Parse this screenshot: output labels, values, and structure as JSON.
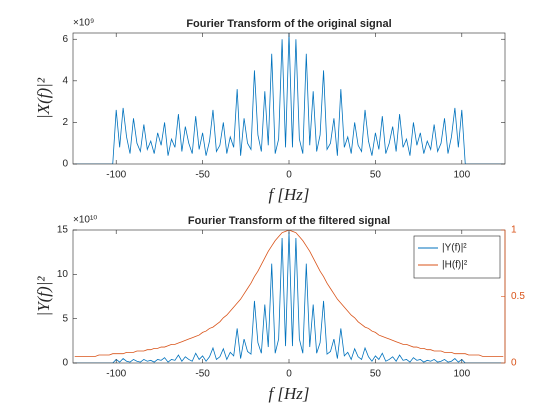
{
  "chart_data": [
    {
      "type": "line",
      "title": "Fourier Transform of the original signal",
      "xlabel": "f [Hz]",
      "ylabel": "|X(f)|²",
      "y_multiplier": "×10⁹",
      "x": [
        -124,
        -122,
        -120,
        -118,
        -116,
        -114,
        -112,
        -110,
        -108,
        -106,
        -104,
        -102,
        -100,
        -98,
        -96,
        -94,
        -92,
        -90,
        -88,
        -86,
        -84,
        -82,
        -80,
        -78,
        -76,
        -74,
        -72,
        -70,
        -68,
        -66,
        -64,
        -62,
        -60,
        -58,
        -56,
        -54,
        -52,
        -50,
        -48,
        -46,
        -44,
        -42,
        -40,
        -38,
        -36,
        -34,
        -32,
        -30,
        -28,
        -26,
        -24,
        -22,
        -20,
        -18,
        -16,
        -14,
        -12,
        -10,
        -8,
        -6,
        -4,
        -2,
        0,
        2,
        4,
        6,
        8,
        10,
        12,
        14,
        16,
        18,
        20,
        22,
        24,
        26,
        28,
        30,
        32,
        34,
        36,
        38,
        40,
        42,
        44,
        46,
        48,
        50,
        52,
        54,
        56,
        58,
        60,
        62,
        64,
        66,
        68,
        70,
        72,
        74,
        76,
        78,
        80,
        82,
        84,
        86,
        88,
        90,
        92,
        94,
        96,
        98,
        100,
        102,
        104,
        106,
        108,
        110,
        112,
        114,
        116,
        118,
        120,
        122,
        124
      ],
      "series": [
        {
          "color": "#0072BD",
          "values": [
            0,
            0,
            0,
            0,
            0,
            0,
            0,
            0,
            0,
            0,
            0,
            0,
            2.6,
            0.8,
            2.7,
            1.3,
            0.5,
            2.2,
            1.0,
            0.6,
            1.9,
            0.7,
            1.1,
            0.5,
            1.5,
            0.9,
            2.0,
            0.4,
            1.2,
            0.8,
            2.4,
            0.6,
            1.8,
            1.0,
            0.5,
            2.3,
            0.7,
            1.5,
            0.4,
            1.1,
            2.6,
            0.6,
            0.9,
            2.0,
            0.5,
            1.3,
            0.8,
            3.6,
            0.4,
            2.2,
            1.0,
            0.7,
            4.5,
            1.4,
            0.6,
            3.5,
            0.9,
            5.3,
            0.5,
            1.2,
            6.0,
            0.8,
            6.3,
            0.8,
            6.0,
            1.2,
            0.5,
            5.3,
            0.9,
            3.5,
            0.6,
            1.4,
            4.5,
            0.7,
            1.0,
            2.2,
            0.4,
            3.6,
            0.8,
            1.3,
            0.5,
            2.0,
            0.9,
            0.6,
            2.6,
            1.1,
            0.4,
            1.5,
            0.7,
            2.3,
            0.5,
            1.0,
            1.8,
            0.6,
            2.4,
            0.8,
            1.2,
            0.4,
            2.0,
            0.9,
            1.5,
            0.5,
            1.1,
            0.7,
            1.9,
            0.6,
            1.0,
            2.2,
            0.5,
            1.3,
            2.7,
            0.8,
            2.6,
            0,
            0,
            0,
            0,
            0,
            0,
            0,
            0,
            0,
            0,
            0,
            0
          ]
        }
      ],
      "xlim": [
        -125,
        125
      ],
      "xticks": [
        -100,
        -50,
        0,
        50,
        100
      ],
      "ylim": [
        0,
        6.3
      ],
      "yticks": [
        0,
        2,
        4,
        6
      ]
    },
    {
      "type": "line",
      "title": "Fourier Transform of the filtered signal",
      "xlabel": "f [Hz]",
      "ylabel": "|Y(f)|²",
      "y_multiplier": "×10¹⁰",
      "x": [
        -124,
        -122,
        -120,
        -118,
        -116,
        -114,
        -112,
        -110,
        -108,
        -106,
        -104,
        -102,
        -100,
        -98,
        -96,
        -94,
        -92,
        -90,
        -88,
        -86,
        -84,
        -82,
        -80,
        -78,
        -76,
        -74,
        -72,
        -70,
        -68,
        -66,
        -64,
        -62,
        -60,
        -58,
        -56,
        -54,
        -52,
        -50,
        -48,
        -46,
        -44,
        -42,
        -40,
        -38,
        -36,
        -34,
        -32,
        -30,
        -28,
        -26,
        -24,
        -22,
        -20,
        -18,
        -16,
        -14,
        -12,
        -10,
        -8,
        -6,
        -4,
        -2,
        0,
        2,
        4,
        6,
        8,
        10,
        12,
        14,
        16,
        18,
        20,
        22,
        24,
        26,
        28,
        30,
        32,
        34,
        36,
        38,
        40,
        42,
        44,
        46,
        48,
        50,
        52,
        54,
        56,
        58,
        60,
        62,
        64,
        66,
        68,
        70,
        72,
        74,
        76,
        78,
        80,
        82,
        84,
        86,
        88,
        90,
        92,
        94,
        96,
        98,
        100,
        102,
        104,
        106,
        108,
        110,
        112,
        114,
        116,
        118,
        120,
        122,
        124
      ],
      "series": [
        {
          "name": "|Y(f)|²",
          "color": "#0072BD",
          "values": [
            0,
            0,
            0,
            0,
            0,
            0,
            0,
            0,
            0,
            0,
            0,
            0,
            0.4,
            0.1,
            0.5,
            0.2,
            0.1,
            0.4,
            0.2,
            0.1,
            0.4,
            0.2,
            0.3,
            0.1,
            0.4,
            0.3,
            0.6,
            0.1,
            0.4,
            0.3,
            0.9,
            0.2,
            0.7,
            0.4,
            0.2,
            1.1,
            0.4,
            0.8,
            0.2,
            0.7,
            1.7,
            0.4,
            0.7,
            1.6,
            0.4,
            1.2,
            0.8,
            3.9,
            0.5,
            2.7,
            1.3,
            1.0,
            7.0,
            2.3,
            1.1,
            6.6,
            1.8,
            11.2,
            1.1,
            2.7,
            14.1,
            1.9,
            14.8,
            1.9,
            14.1,
            2.7,
            1.1,
            11.2,
            1.8,
            6.6,
            1.1,
            2.3,
            7.0,
            1.0,
            1.3,
            2.7,
            0.5,
            3.9,
            0.8,
            1.2,
            0.4,
            1.6,
            0.7,
            0.4,
            1.7,
            0.7,
            0.2,
            0.8,
            0.4,
            1.1,
            0.2,
            0.4,
            0.7,
            0.2,
            0.9,
            0.3,
            0.4,
            0.1,
            0.6,
            0.3,
            0.4,
            0.1,
            0.3,
            0.2,
            0.4,
            0.1,
            0.2,
            0.4,
            0.1,
            0.2,
            0.5,
            0.1,
            0.4,
            0,
            0,
            0,
            0,
            0,
            0,
            0,
            0,
            0,
            0,
            0,
            0
          ]
        },
        {
          "name": "|H(f)|²",
          "color": "#D95319",
          "axis": "y2",
          "values": [
            0.05,
            0.05,
            0.05,
            0.05,
            0.05,
            0.05,
            0.05,
            0.06,
            0.06,
            0.06,
            0.06,
            0.07,
            0.07,
            0.07,
            0.07,
            0.08,
            0.08,
            0.08,
            0.09,
            0.09,
            0.09,
            0.1,
            0.1,
            0.11,
            0.11,
            0.12,
            0.12,
            0.13,
            0.14,
            0.14,
            0.15,
            0.16,
            0.17,
            0.18,
            0.19,
            0.2,
            0.21,
            0.23,
            0.24,
            0.26,
            0.27,
            0.29,
            0.31,
            0.34,
            0.36,
            0.39,
            0.42,
            0.45,
            0.48,
            0.52,
            0.56,
            0.6,
            0.65,
            0.69,
            0.74,
            0.79,
            0.84,
            0.88,
            0.92,
            0.95,
            0.98,
            0.99,
            1,
            0.99,
            0.98,
            0.95,
            0.92,
            0.88,
            0.84,
            0.79,
            0.74,
            0.69,
            0.65,
            0.6,
            0.56,
            0.52,
            0.48,
            0.45,
            0.42,
            0.39,
            0.36,
            0.34,
            0.31,
            0.29,
            0.27,
            0.26,
            0.24,
            0.23,
            0.21,
            0.2,
            0.19,
            0.18,
            0.17,
            0.16,
            0.15,
            0.14,
            0.14,
            0.13,
            0.12,
            0.12,
            0.11,
            0.11,
            0.1,
            0.1,
            0.09,
            0.09,
            0.09,
            0.08,
            0.08,
            0.08,
            0.07,
            0.07,
            0.07,
            0.07,
            0.06,
            0.06,
            0.06,
            0.06,
            0.05,
            0.05,
            0.05,
            0.05,
            0.05,
            0.05,
            0.05
          ]
        }
      ],
      "xlim": [
        -125,
        125
      ],
      "xticks": [
        -100,
        -50,
        0,
        50,
        100
      ],
      "ylim": [
        0,
        15
      ],
      "yticks": [
        0,
        5,
        10,
        15
      ],
      "y2lim": [
        0,
        1
      ],
      "y2ticks": [
        0,
        0.5,
        1
      ],
      "y2color": "#D95319",
      "legend": "upper right"
    }
  ]
}
